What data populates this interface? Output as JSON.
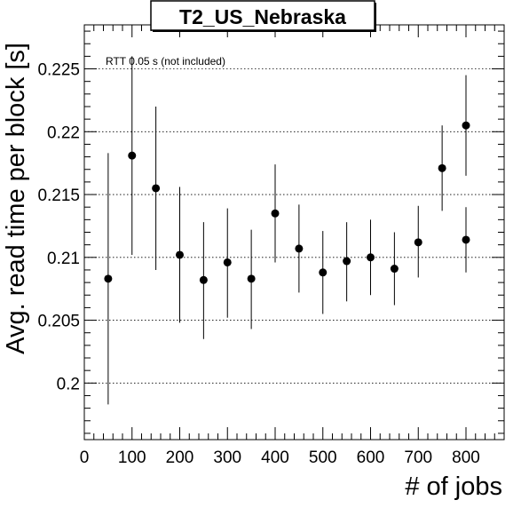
{
  "chart_data": {
    "type": "scatter",
    "title": "T2_US_Nebraska",
    "annotation": "RTT 0.05 s (not included)",
    "xlabel": "# of jobs",
    "ylabel": "Avg. read time per block [s]",
    "xlim": [
      0,
      880
    ],
    "ylim": [
      0.1955,
      0.2285
    ],
    "x_ticks": [
      0,
      100,
      200,
      300,
      400,
      500,
      600,
      700,
      800
    ],
    "x_tick_labels": [
      "0",
      "100",
      "200",
      "300",
      "400",
      "500",
      "600",
      "700",
      "800"
    ],
    "y_ticks": [
      0.2,
      0.205,
      0.21,
      0.215,
      0.22,
      0.225
    ],
    "y_tick_labels": [
      "0.2",
      "0.205",
      "0.21",
      "0.215",
      "0.22",
      "0.225"
    ],
    "grid": "y-dotted",
    "series": [
      {
        "marker": "filled-circle",
        "color": "#000000",
        "points": [
          {
            "x": 50,
            "y": 0.2083,
            "ylow": 0.1983,
            "yhigh": 0.2183
          },
          {
            "x": 100,
            "y": 0.2181,
            "ylow": 0.2102,
            "yhigh": 0.226
          },
          {
            "x": 150,
            "y": 0.2155,
            "ylow": 0.209,
            "yhigh": 0.222
          },
          {
            "x": 200,
            "y": 0.2102,
            "ylow": 0.2048,
            "yhigh": 0.2156
          },
          {
            "x": 250,
            "y": 0.2082,
            "ylow": 0.2035,
            "yhigh": 0.2128
          },
          {
            "x": 300,
            "y": 0.2096,
            "ylow": 0.2052,
            "yhigh": 0.2139
          },
          {
            "x": 350,
            "y": 0.2083,
            "ylow": 0.2043,
            "yhigh": 0.2122
          },
          {
            "x": 400,
            "y": 0.2135,
            "ylow": 0.2096,
            "yhigh": 0.2174
          },
          {
            "x": 450,
            "y": 0.2107,
            "ylow": 0.2072,
            "yhigh": 0.2142
          },
          {
            "x": 500,
            "y": 0.2088,
            "ylow": 0.2055,
            "yhigh": 0.2121
          },
          {
            "x": 550,
            "y": 0.2097,
            "ylow": 0.2065,
            "yhigh": 0.2128
          },
          {
            "x": 600,
            "y": 0.21,
            "ylow": 0.207,
            "yhigh": 0.213
          },
          {
            "x": 650,
            "y": 0.2091,
            "ylow": 0.2062,
            "yhigh": 0.212
          },
          {
            "x": 700,
            "y": 0.2112,
            "ylow": 0.2084,
            "yhigh": 0.2141
          },
          {
            "x": 750,
            "y": 0.2171,
            "ylow": 0.2137,
            "yhigh": 0.2205
          },
          {
            "x": 800,
            "y": 0.2205,
            "ylow": 0.2165,
            "yhigh": 0.2245
          },
          {
            "x": 800,
            "y": 0.2114,
            "ylow": 0.2088,
            "yhigh": 0.214
          }
        ]
      }
    ]
  }
}
